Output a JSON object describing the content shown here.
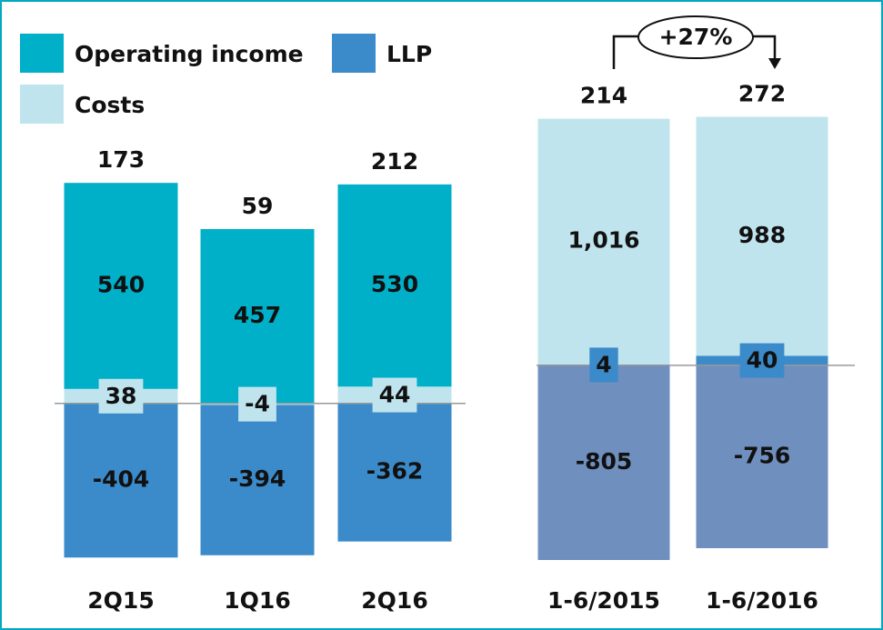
{
  "chart_data": [
    {
      "type": "bar",
      "stacked": true,
      "categories": [
        "2Q15",
        "1Q16",
        "2Q16"
      ],
      "series": [
        {
          "name": "Costs",
          "color": "#c0e4ee",
          "values": [
            38,
            -4,
            44
          ]
        },
        {
          "name": "Operating income",
          "color": "#00afc8",
          "values": [
            540,
            457,
            530
          ]
        },
        {
          "name": "LLP",
          "color": "#3b8bca",
          "values": [
            -404,
            -394,
            -362
          ]
        }
      ],
      "totals": [
        173,
        59,
        212
      ],
      "ylim": [
        -420,
        700
      ]
    },
    {
      "type": "bar",
      "stacked": true,
      "categories": [
        "1-6/2015",
        "1-6/2016"
      ],
      "series": [
        {
          "name": "LLP",
          "color": "#3b8bca",
          "values": [
            4,
            40
          ]
        },
        {
          "color": "#c0e4ee",
          "values": [
            1016,
            988
          ],
          "value_labels": [
            "1,016",
            "988"
          ]
        },
        {
          "color": "#6f8fbf",
          "values": [
            -805,
            -756
          ]
        }
      ],
      "totals": [
        214,
        272
      ],
      "annotation": "+27%",
      "ylim": [
        -820,
        1060
      ]
    }
  ]
}
